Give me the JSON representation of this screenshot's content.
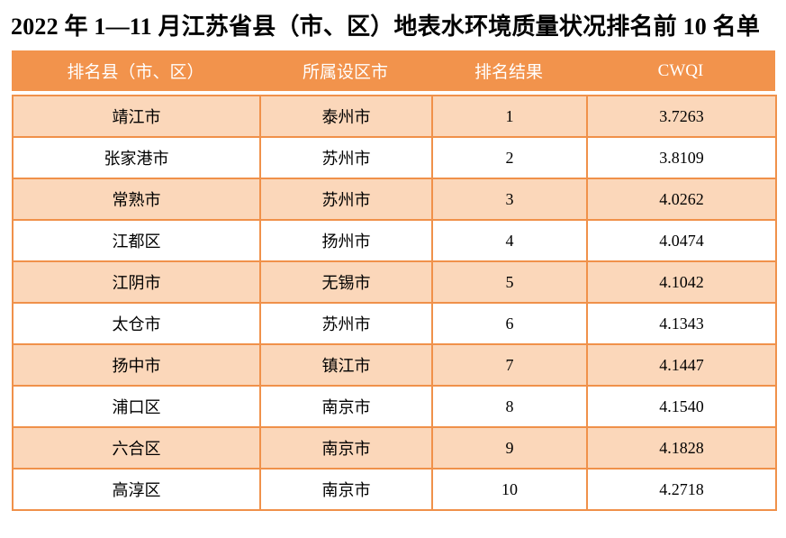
{
  "title": "2022 年 1—11 月江苏省县（市、区）地表水环境质量状况排名前 10 名单",
  "table": {
    "headers": [
      "排名县（市、区）",
      "所属设区市",
      "排名结果",
      "CWQI"
    ],
    "rows": [
      [
        "靖江市",
        "泰州市",
        "1",
        "3.7263"
      ],
      [
        "张家港市",
        "苏州市",
        "2",
        "3.8109"
      ],
      [
        "常熟市",
        "苏州市",
        "3",
        "4.0262"
      ],
      [
        "江都区",
        "扬州市",
        "4",
        "4.0474"
      ],
      [
        "江阴市",
        "无锡市",
        "5",
        "4.1042"
      ],
      [
        "太仓市",
        "苏州市",
        "6",
        "4.1343"
      ],
      [
        "扬中市",
        "镇江市",
        "7",
        "4.1447"
      ],
      [
        "浦口区",
        "南京市",
        "8",
        "4.1540"
      ],
      [
        "六合区",
        "南京市",
        "9",
        "4.1828"
      ],
      [
        "高淳区",
        "南京市",
        "10",
        "4.2718"
      ]
    ]
  },
  "colors": {
    "header_bg": "#F2934C",
    "border": "#F0914A",
    "row_alt_bg": "#FBD7BA",
    "row_bg": "#FFFFFF",
    "header_text": "#FFFFFF",
    "body_text": "#000000",
    "title_text": "#000000"
  }
}
